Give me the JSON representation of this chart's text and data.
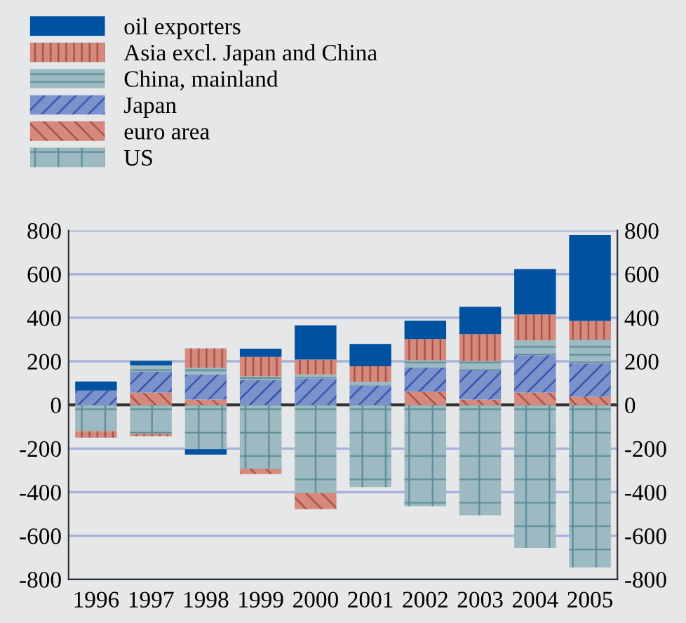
{
  "chart_data": {
    "type": "bar",
    "stacked": true,
    "categories": [
      "1996",
      "1997",
      "1998",
      "1999",
      "2000",
      "2001",
      "2002",
      "2003",
      "2004",
      "2005"
    ],
    "series": [
      {
        "name": "US",
        "color": "#9dbac2",
        "values": [
          -120,
          -133,
          -203,
          -292,
          -404,
          -377,
          -464,
          -506,
          -656,
          -745
        ]
      },
      {
        "name": "euro area",
        "color": "#d48a7c",
        "values": [
          null,
          57,
          25,
          -25,
          -74,
          null,
          61,
          25,
          57,
          38
        ]
      },
      {
        "name": "Japan",
        "color": "#7b92cc",
        "values": [
          66,
          95,
          116,
          114,
          121,
          89,
          110,
          133,
          171,
          152
        ]
      },
      {
        "name": "China, mainland",
        "color": "#9dbac2",
        "values": [
          null,
          30,
          30,
          17,
          19,
          17,
          34,
          44,
          68,
          110
        ]
      },
      {
        "name": "Asia excl. Japan and China",
        "color": "#d48a7c",
        "values": [
          -30,
          -10,
          89,
          89,
          68,
          72,
          97,
          123,
          119,
          85
        ]
      },
      {
        "name": "oil exporters",
        "color": "#0052a0",
        "values": [
          42,
          20,
          -25,
          38,
          157,
          102,
          85,
          125,
          208,
          394
        ]
      }
    ],
    "ylim": [
      -800,
      800
    ],
    "yticks": [
      -800,
      -600,
      -400,
      -200,
      0,
      200,
      400,
      600,
      800
    ],
    "y2lim": [
      -800,
      800
    ],
    "y2ticks": [
      -800,
      -600,
      -400,
      -200,
      0,
      200,
      400,
      600,
      800
    ],
    "grid": true,
    "legend": "top"
  }
}
